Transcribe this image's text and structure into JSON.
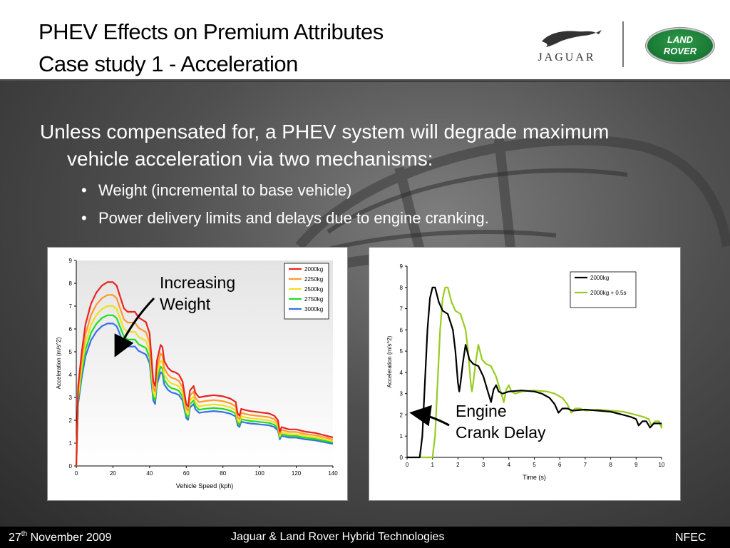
{
  "header": {
    "title_line1": "PHEV Effects on Premium Attributes",
    "title_line2": "Case study 1 - Acceleration",
    "logo_left": "JAGUAR",
    "logo_right_line1": "LAND",
    "logo_right_line2": "ROVER"
  },
  "body": {
    "main_bullet": "Unless compensated for, a PHEV system will degrade maximum vehicle acceleration via two mechanisms:",
    "sub_bullets": [
      "Weight (incremental to base vehicle)",
      "Power delivery limits and delays due to engine cranking."
    ],
    "annotation1": [
      "Increasing",
      "Weight"
    ],
    "annotation2": [
      "Engine",
      "Crank Delay"
    ]
  },
  "footer": {
    "date_day": "27",
    "date_suffix": "th",
    "date_rest": " November 2009",
    "center": "Jaguar & Land Rover Hybrid Technologies",
    "right": "NFEC"
  },
  "chart_data": [
    {
      "type": "line",
      "xlabel": "Vehicle Speed (kph)",
      "ylabel": "Acceleration (m/s^2)",
      "xlim": [
        0,
        140
      ],
      "ylim": [
        0,
        9
      ],
      "xticks": [
        0,
        20,
        40,
        60,
        80,
        100,
        120,
        140
      ],
      "yticks": [
        0,
        1,
        2,
        3,
        4,
        5,
        6,
        7,
        8,
        9
      ],
      "grid": false,
      "legend": "top-right",
      "series": [
        {
          "name": "2000kg",
          "color": "#e8231f",
          "scale": 1.0
        },
        {
          "name": "2250kg",
          "color": "#ff9a2a",
          "scale": 0.93
        },
        {
          "name": "2500kg",
          "color": "#f0e020",
          "scale": 0.87
        },
        {
          "name": "2750kg",
          "color": "#22dd22",
          "scale": 0.82
        },
        {
          "name": "3000kg",
          "color": "#3a6fe8",
          "scale": 0.775
        }
      ],
      "base_curve": [
        [
          0,
          0
        ],
        [
          1,
          3.5
        ],
        [
          3,
          5
        ],
        [
          5,
          6.2
        ],
        [
          8,
          7.1
        ],
        [
          11,
          7.6
        ],
        [
          14,
          7.9
        ],
        [
          17,
          8.05
        ],
        [
          20,
          8.05
        ],
        [
          22,
          7.9
        ],
        [
          24,
          7.4
        ],
        [
          26,
          6.9
        ],
        [
          28,
          6.75
        ],
        [
          32,
          6.75
        ],
        [
          34,
          6.5
        ],
        [
          36,
          6.4
        ],
        [
          38,
          6.3
        ],
        [
          40,
          5.8
        ],
        [
          42,
          3.7
        ],
        [
          43,
          3.5
        ],
        [
          44,
          4.6
        ],
        [
          46,
          5.3
        ],
        [
          47,
          5.2
        ],
        [
          48,
          4.6
        ],
        [
          50,
          4.3
        ],
        [
          52,
          4.15
        ],
        [
          54,
          4.1
        ],
        [
          56,
          4.0
        ],
        [
          58,
          3.7
        ],
        [
          60,
          2.7
        ],
        [
          61,
          2.6
        ],
        [
          62,
          3.3
        ],
        [
          64,
          3.5
        ],
        [
          65,
          3.2
        ],
        [
          67,
          3.0
        ],
        [
          70,
          3.05
        ],
        [
          75,
          3.1
        ],
        [
          80,
          3.05
        ],
        [
          84,
          2.95
        ],
        [
          87,
          2.8
        ],
        [
          88,
          2.3
        ],
        [
          89,
          2.2
        ],
        [
          90,
          2.5
        ],
        [
          92,
          2.45
        ],
        [
          95,
          2.4
        ],
        [
          100,
          2.35
        ],
        [
          105,
          2.3
        ],
        [
          108,
          2.2
        ],
        [
          110,
          2.0
        ],
        [
          111,
          1.5
        ],
        [
          112,
          1.7
        ],
        [
          114,
          1.65
        ],
        [
          116,
          1.6
        ],
        [
          120,
          1.6
        ],
        [
          125,
          1.5
        ],
        [
          130,
          1.45
        ],
        [
          135,
          1.35
        ],
        [
          140,
          1.25
        ]
      ]
    },
    {
      "type": "line",
      "xlabel": "Time (s)",
      "ylabel": "Acceleration (m/s^2)",
      "xlim": [
        0,
        10
      ],
      "ylim": [
        0,
        9
      ],
      "xticks": [
        0,
        1,
        2,
        3,
        4,
        5,
        6,
        7,
        8,
        9,
        10
      ],
      "yticks": [
        0,
        1,
        2,
        3,
        4,
        5,
        6,
        7,
        8,
        9
      ],
      "grid": false,
      "legend": "top-right",
      "series": [
        {
          "name": "2000kg",
          "color": "#000000",
          "offset": 0
        },
        {
          "name": "2000kg + 0.5s",
          "color": "#99cc22",
          "offset": 0.5
        }
      ],
      "base_curve": [
        [
          0,
          0
        ],
        [
          0.5,
          0
        ],
        [
          0.6,
          1
        ],
        [
          0.7,
          3.5
        ],
        [
          0.8,
          6
        ],
        [
          0.9,
          7.5
        ],
        [
          1.0,
          8.0
        ],
        [
          1.1,
          8.0
        ],
        [
          1.25,
          7.3
        ],
        [
          1.4,
          6.9
        ],
        [
          1.6,
          6.75
        ],
        [
          1.8,
          6.0
        ],
        [
          1.9,
          5.0
        ],
        [
          2.0,
          3.5
        ],
        [
          2.05,
          3.1
        ],
        [
          2.1,
          3.5
        ],
        [
          2.2,
          4.5
        ],
        [
          2.3,
          5.3
        ],
        [
          2.45,
          4.6
        ],
        [
          2.6,
          4.4
        ],
        [
          2.8,
          4.3
        ],
        [
          3.0,
          3.8
        ],
        [
          3.2,
          3.0
        ],
        [
          3.3,
          2.6
        ],
        [
          3.4,
          3.2
        ],
        [
          3.5,
          3.4
        ],
        [
          3.6,
          3.1
        ],
        [
          3.75,
          3.0
        ],
        [
          4.0,
          3.1
        ],
        [
          4.5,
          3.15
        ],
        [
          5.0,
          3.1
        ],
        [
          5.3,
          3.0
        ],
        [
          5.6,
          2.8
        ],
        [
          5.8,
          2.5
        ],
        [
          5.95,
          2.1
        ],
        [
          6.1,
          2.3
        ],
        [
          6.3,
          2.3
        ],
        [
          6.5,
          2.2
        ],
        [
          7.0,
          2.25
        ],
        [
          7.5,
          2.2
        ],
        [
          8.0,
          2.15
        ],
        [
          8.5,
          2.0
        ],
        [
          8.8,
          1.9
        ],
        [
          9.0,
          1.8
        ],
        [
          9.1,
          1.5
        ],
        [
          9.25,
          1.7
        ],
        [
          9.4,
          1.7
        ],
        [
          9.55,
          1.4
        ],
        [
          9.7,
          1.6
        ],
        [
          10.0,
          1.6
        ]
      ]
    }
  ]
}
